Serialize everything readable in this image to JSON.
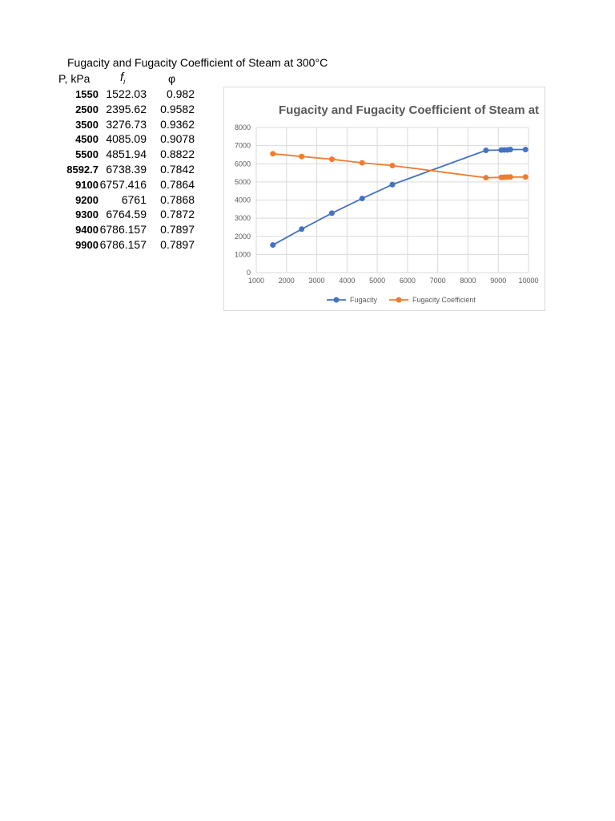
{
  "sheet": {
    "title": "Fugacity and Fugacity Coefficient of Steam at 300°C",
    "col_p": "P, kPa",
    "col_f_main": "f",
    "col_f_sub": "i",
    "col_phi": "φ",
    "rows": [
      {
        "p": "1550",
        "f": "1522.03",
        "phi": "0.982"
      },
      {
        "p": "2500",
        "f": "2395.62",
        "phi": "0.9582"
      },
      {
        "p": "3500",
        "f": "3276.73",
        "phi": "0.9362"
      },
      {
        "p": "4500",
        "f": "4085.09",
        "phi": "0.9078"
      },
      {
        "p": "5500",
        "f": "4851.94",
        "phi": "0.8822"
      },
      {
        "p": "8592.7",
        "f": "6738.39",
        "phi": "0.7842"
      },
      {
        "p": "9100",
        "f": "6757.416",
        "phi": "0.7864"
      },
      {
        "p": "9200",
        "f": "6761",
        "phi": "0.7868"
      },
      {
        "p": "9300",
        "f": "6764.59",
        "phi": "0.7872"
      },
      {
        "p": "9400",
        "f": "6786.157",
        "phi": "0.7897"
      },
      {
        "p": "9900",
        "f": "6786.157",
        "phi": "0.7897"
      }
    ]
  },
  "chart_data": {
    "type": "line",
    "title": "Fugacity and Fugacity Coefficient of Steam at",
    "xlabel": "",
    "ylabel": "",
    "xlim": [
      1000,
      10000
    ],
    "ylim": [
      0,
      8000
    ],
    "x_ticks": [
      1000,
      2000,
      3000,
      4000,
      5000,
      6000,
      7000,
      8000,
      9000,
      10000
    ],
    "y_ticks": [
      0,
      1000,
      2000,
      3000,
      4000,
      5000,
      6000,
      7000,
      8000
    ],
    "grid": true,
    "legend_position": "bottom",
    "series": [
      {
        "name": "Fugacity",
        "color": "#4472C4",
        "x": [
          1550,
          2500,
          3500,
          4500,
          5500,
          8592.7,
          9100,
          9200,
          9300,
          9400,
          9900
        ],
        "y": [
          1522.03,
          2395.62,
          3276.73,
          4085.09,
          4851.94,
          6738.39,
          6757.416,
          6761,
          6764.59,
          6786.157,
          6786.157
        ]
      },
      {
        "name": "Fugacity Coefficient",
        "color": "#ED7D31",
        "x": [
          1550,
          2500,
          3500,
          4500,
          5500,
          8592.7,
          9100,
          9200,
          9300,
          9400,
          9900
        ],
        "y": [
          6550,
          6400,
          6250,
          6050,
          5900,
          5230,
          5250,
          5260,
          5265,
          5270,
          5270
        ]
      }
    ]
  }
}
